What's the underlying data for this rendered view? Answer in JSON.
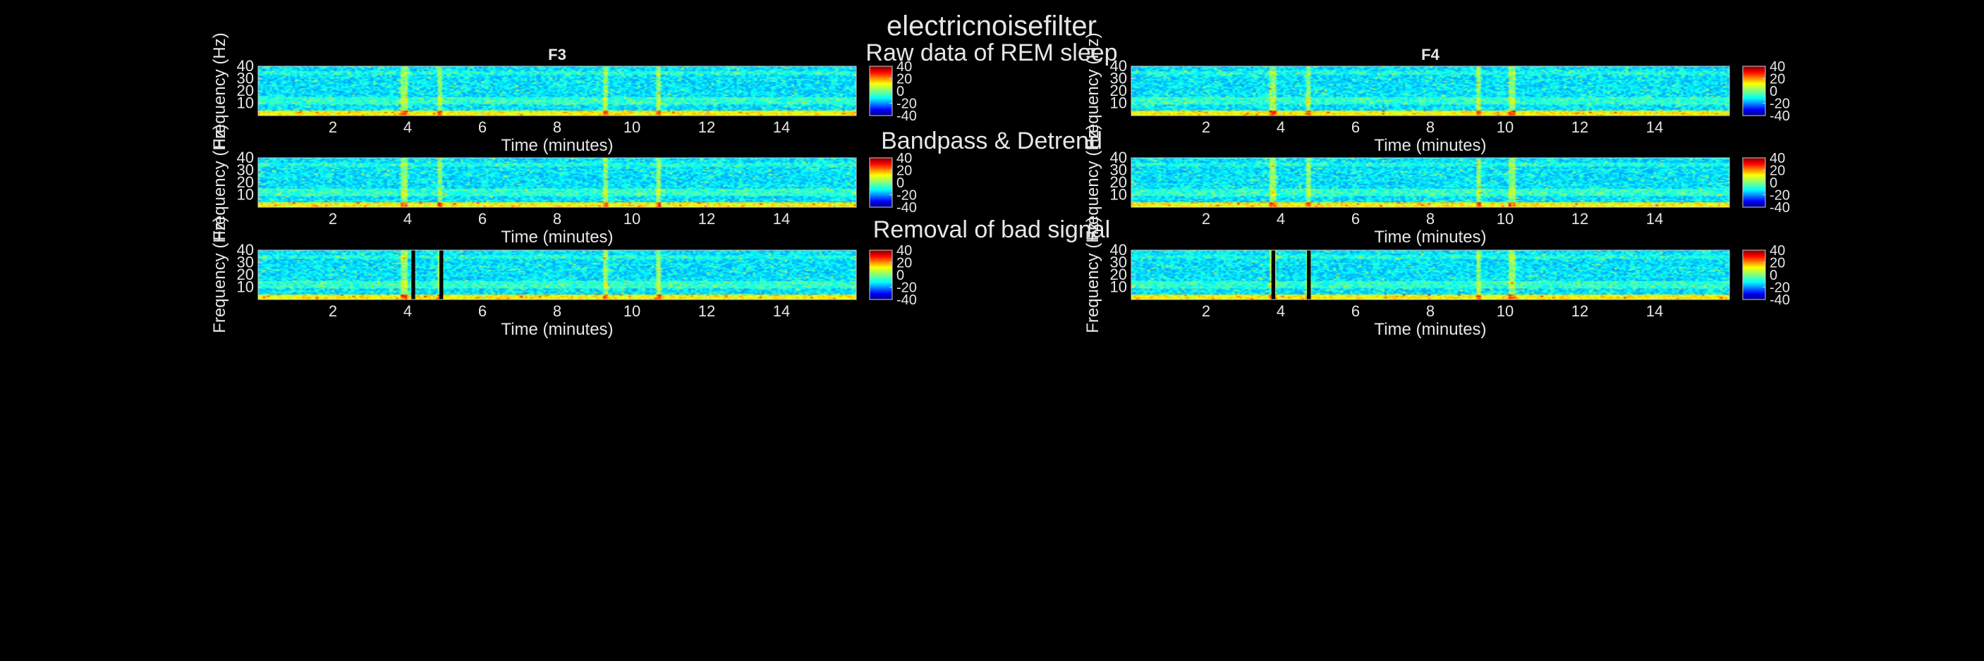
{
  "figure_title": "electricnoisefilter",
  "chart_data": {
    "type": "heatmap",
    "subtype": "spectrogram-grid",
    "colormap": "jet",
    "background": "#000000",
    "columns": [
      "F3",
      "F4"
    ],
    "rows": [
      {
        "title": "Raw data of REM sleep",
        "removed_segments": {
          "F3": [],
          "F4": []
        }
      },
      {
        "title": "Bandpass & Detrend",
        "removed_segments": {
          "F3": [],
          "F4": []
        }
      },
      {
        "title": "Removal of bad signal",
        "removed_segments": {
          "F3": [
            [
              4.1,
              4.2
            ],
            [
              4.85,
              4.95
            ]
          ],
          "F4": [
            [
              3.75,
              3.85
            ],
            [
              4.7,
              4.8
            ]
          ]
        }
      }
    ],
    "xlabel": "Time (minutes)",
    "ylabel": "Frequency (Hz)",
    "xlim": [
      0,
      16
    ],
    "ylim": [
      0,
      40
    ],
    "xticks": [
      2,
      4,
      6,
      8,
      10,
      12,
      14
    ],
    "yticks": [
      10,
      20,
      30,
      40
    ],
    "colorbar": {
      "ticks": [
        40,
        20,
        0,
        -20,
        -40
      ],
      "range": [
        -40,
        40
      ]
    },
    "artifact_bands": {
      "F3": [
        3.9,
        4.85,
        9.3,
        10.7
      ],
      "F4": [
        3.8,
        4.75,
        9.3,
        10.2
      ]
    }
  }
}
